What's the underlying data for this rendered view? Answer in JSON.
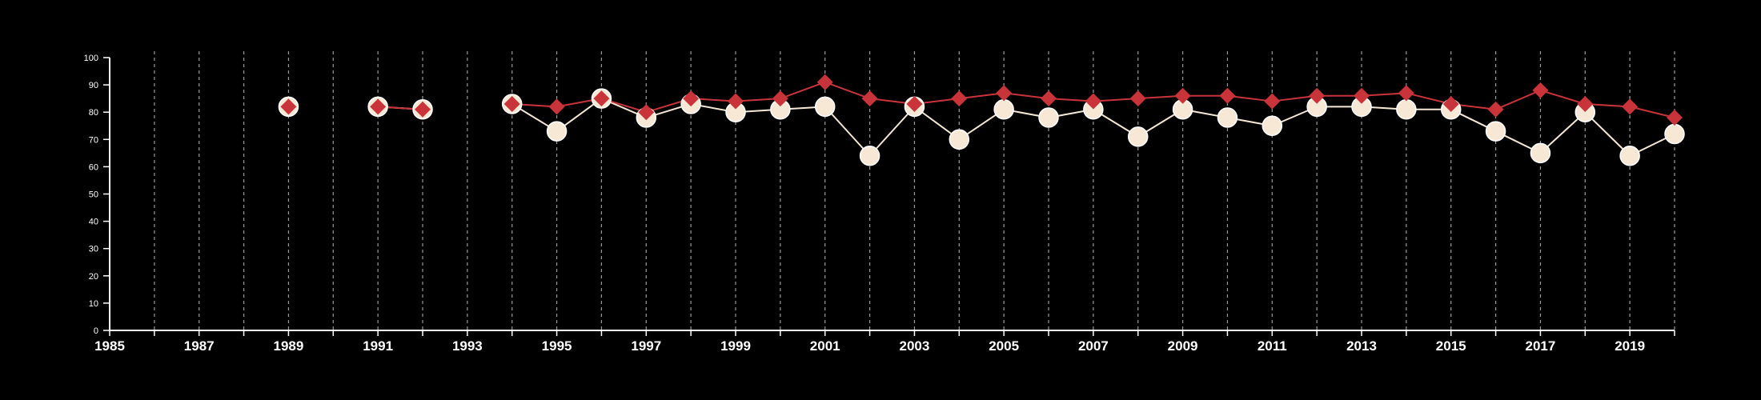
{
  "chart_data": {
    "type": "line",
    "x": [
      1989,
      1991,
      1992,
      1994,
      1995,
      1996,
      1997,
      1998,
      1999,
      2000,
      2001,
      2002,
      2003,
      2004,
      2005,
      2006,
      2007,
      2008,
      2009,
      2010,
      2011,
      2012,
      2013,
      2014,
      2015,
      2016,
      2017,
      2018,
      2019,
      2020
    ],
    "series": [
      {
        "color": "#f7e8d5",
        "marker": "circle",
        "values": [
          82,
          82,
          81,
          83,
          73,
          85,
          78,
          83,
          80,
          81,
          82,
          64,
          82,
          70,
          81,
          78,
          81,
          71,
          81,
          78,
          75,
          82,
          82,
          81,
          81,
          73,
          65,
          80,
          64,
          72
        ]
      },
      {
        "color": "#c9343a",
        "marker": "diamond",
        "values": [
          82,
          82,
          81,
          83,
          82,
          85,
          80,
          85,
          84,
          85,
          91,
          85,
          83,
          85,
          87,
          85,
          84,
          85,
          86,
          86,
          84,
          86,
          86,
          87,
          83,
          81,
          88,
          83,
          82,
          78
        ]
      }
    ],
    "xlim": [
      1985,
      2020
    ],
    "ylim": [
      0,
      100
    ],
    "x_tick_labels": [
      "1985",
      "1987",
      "1989",
      "1991",
      "1993",
      "1995",
      "1997",
      "1999",
      "2001",
      "2003",
      "2005",
      "2007",
      "2009",
      "2011",
      "2013",
      "2015",
      "2017",
      "2019"
    ],
    "y_tick_labels": [
      "0",
      "10",
      "20",
      "30",
      "40",
      "50",
      "60",
      "70",
      "80",
      "90",
      "100"
    ],
    "vertical_grid": "dashed, every year",
    "title": "",
    "xlabel": "",
    "ylabel": ""
  }
}
